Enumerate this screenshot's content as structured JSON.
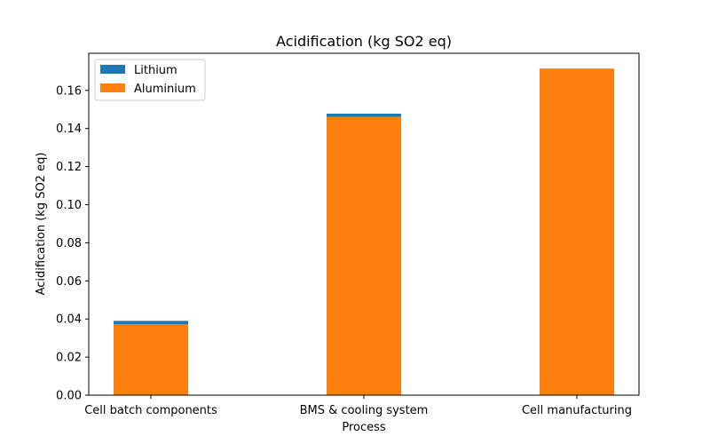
{
  "chart_data": {
    "type": "bar",
    "stacked": true,
    "title": "Acidification (kg SO2 eq)",
    "xlabel": "Process",
    "ylabel": "Acidification (kg SO2 eq)",
    "categories": [
      "Cell batch components",
      "BMS & cooling system",
      "Cell manufacturing"
    ],
    "series": [
      {
        "name": "Aluminium",
        "color": "#ff7f0e",
        "values": [
          0.0373,
          0.1461,
          0.1715
        ]
      },
      {
        "name": "Lithium",
        "color": "#1f77b4",
        "values": [
          0.0017,
          0.0017,
          0.0
        ]
      }
    ],
    "ylim": [
      0,
      0.1795
    ],
    "yticks": [
      0.0,
      0.02,
      0.04,
      0.06,
      0.08,
      0.1,
      0.12,
      0.14,
      0.16
    ],
    "ytick_labels": [
      "0.00",
      "0.02",
      "0.04",
      "0.06",
      "0.08",
      "0.10",
      "0.12",
      "0.14",
      "0.16"
    ],
    "legend": {
      "position": "top-left",
      "entries": [
        "Lithium",
        "Aluminium"
      ]
    },
    "grid": false
  }
}
